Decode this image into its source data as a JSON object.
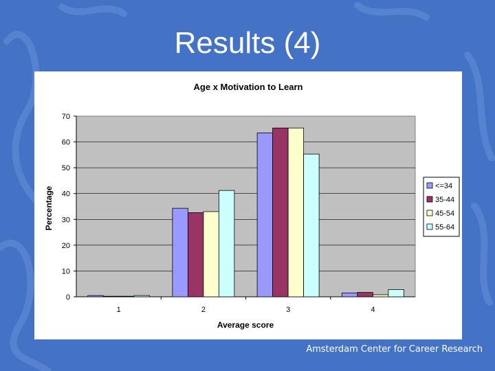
{
  "slide": {
    "title": "Results (4)",
    "footer": "Amsterdam Center for Career Research",
    "background_color": "#4472c4"
  },
  "chart_data": {
    "type": "bar",
    "title": "Age x Motivation to Learn",
    "xlabel": "Average score",
    "ylabel": "Percentage",
    "categories": [
      "1",
      "2",
      "3",
      "4"
    ],
    "ylim": [
      0,
      70
    ],
    "yticks": [
      0,
      10,
      20,
      30,
      40,
      50,
      60,
      70
    ],
    "grid": true,
    "legend_position": "right",
    "series": [
      {
        "name": "<=34",
        "color": "#9999ff",
        "values": [
          0.5,
          34.3,
          63.5,
          1.5
        ]
      },
      {
        "name": "35-44",
        "color": "#993366",
        "values": [
          0.2,
          32.6,
          65.4,
          1.7
        ]
      },
      {
        "name": "45-54",
        "color": "#ffffcc",
        "values": [
          0.0,
          33.0,
          65.4,
          0.8
        ]
      },
      {
        "name": "55-64",
        "color": "#ccffff",
        "values": [
          0.5,
          41.2,
          55.3,
          2.8
        ]
      }
    ]
  }
}
